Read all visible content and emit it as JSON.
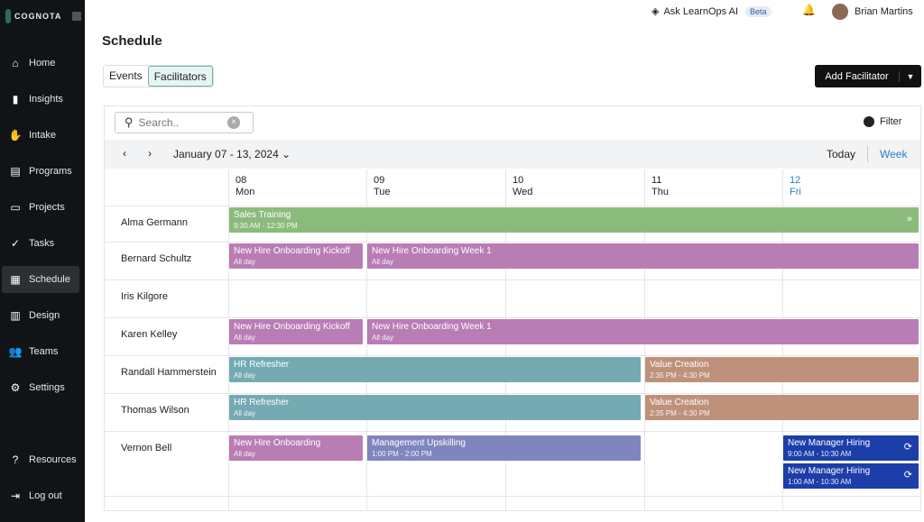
{
  "app": {
    "brand": "COGNOTA"
  },
  "sidebar": {
    "items": [
      {
        "label": "Home",
        "icon": "home-icon",
        "glyph": "⌂"
      },
      {
        "label": "Insights",
        "icon": "bar-chart-icon",
        "glyph": "▮"
      },
      {
        "label": "Intake",
        "icon": "hand-icon",
        "glyph": "✋"
      },
      {
        "label": "Programs",
        "icon": "stack-icon",
        "glyph": "▤"
      },
      {
        "label": "Projects",
        "icon": "card-icon",
        "glyph": "▭"
      },
      {
        "label": "Tasks",
        "icon": "check-circle-icon",
        "glyph": "✓"
      },
      {
        "label": "Schedule",
        "icon": "calendar-icon",
        "glyph": "▦"
      },
      {
        "label": "Design",
        "icon": "document-icon",
        "glyph": "▥"
      },
      {
        "label": "Teams",
        "icon": "people-icon",
        "glyph": "👥"
      },
      {
        "label": "Settings",
        "icon": "gear-icon",
        "glyph": "⚙"
      }
    ],
    "bottom": [
      {
        "label": "Resources",
        "icon": "help-icon",
        "glyph": "?"
      },
      {
        "label": "Log out",
        "icon": "logout-icon",
        "glyph": "⇥"
      }
    ],
    "active": "Schedule"
  },
  "header": {
    "ask": "Ask LearnOps AI",
    "beta": "Beta",
    "user": "Brian Martins"
  },
  "page": {
    "title": "Schedule",
    "tabs": [
      "Events",
      "Facilitators"
    ],
    "active_tab": "Facilitators",
    "add_button": "Add Facilitator"
  },
  "toolbar": {
    "search_placeholder": "Search..",
    "filter": "Filter",
    "range": "January 07 - 13, 2024",
    "today": "Today",
    "week": "Week"
  },
  "days": [
    {
      "num": "08",
      "name": "Mon"
    },
    {
      "num": "09",
      "name": "Tue"
    },
    {
      "num": "10",
      "name": "Wed"
    },
    {
      "num": "11",
      "name": "Thu"
    },
    {
      "num": "12",
      "name": "Fri",
      "today": true
    }
  ],
  "colors": {
    "green": "#8bbb7c",
    "pink": "#b97db5",
    "teal": "#75aab3",
    "tan": "#be917a",
    "purple": "#8086bd",
    "blue": "#1c3ea9",
    "accent": "#2a7fc4"
  },
  "facilitators": [
    {
      "name": "Alma Germann",
      "events": [
        {
          "title": "Sales Training",
          "time": "9:30 AM - 12:30 PM",
          "start": 0,
          "end": 5,
          "color": "green",
          "continues": true
        }
      ]
    },
    {
      "name": "Bernard Schultz",
      "events": [
        {
          "title": "New Hire Onboarding Kickoff",
          "time": "All day",
          "start": 0,
          "end": 1,
          "color": "pink"
        },
        {
          "title": "New Hire Onboarding Week 1",
          "time": "All day",
          "start": 1,
          "end": 5,
          "color": "pink"
        }
      ]
    },
    {
      "name": "Iris Kilgore",
      "events": []
    },
    {
      "name": "Karen Kelley",
      "events": [
        {
          "title": "New Hire Onboarding Kickoff",
          "time": "All day",
          "start": 0,
          "end": 1,
          "color": "pink"
        },
        {
          "title": "New Hire Onboarding Week 1",
          "time": "All day",
          "start": 1,
          "end": 5,
          "color": "pink"
        }
      ]
    },
    {
      "name": "Randall Hammerstein",
      "events": [
        {
          "title": "HR Refresher",
          "time": "All day",
          "start": 0,
          "end": 3,
          "color": "teal"
        },
        {
          "title": "Value Creation",
          "time": "2:35 PM - 4:30 PM",
          "start": 3,
          "end": 5,
          "color": "tan"
        }
      ]
    },
    {
      "name": "Thomas Wilson",
      "events": [
        {
          "title": "HR Refresher",
          "time": "All day",
          "start": 0,
          "end": 3,
          "color": "teal"
        },
        {
          "title": "Value Creation",
          "time": "2:35 PM - 4:30 PM",
          "start": 3,
          "end": 5,
          "color": "tan"
        }
      ]
    },
    {
      "name": "Vernon Bell",
      "events": [
        {
          "title": "New Hire Onboarding",
          "time": "All day",
          "start": 0,
          "end": 1,
          "color": "pink"
        },
        {
          "title": "Management Upskilling",
          "time": "1:00 PM - 2:00 PM",
          "start": 1,
          "end": 3,
          "color": "purple"
        },
        {
          "title": "New Manager Hiring",
          "time": "9:00 AM - 10:30 AM",
          "start": 4,
          "end": 5,
          "color": "blue",
          "recurring": true
        },
        {
          "title": "New Manager Hiring",
          "time": "1:00 AM - 10:30 AM",
          "start": 4,
          "end": 5,
          "color": "blue",
          "recurring": true,
          "stack": 1
        }
      ]
    }
  ]
}
